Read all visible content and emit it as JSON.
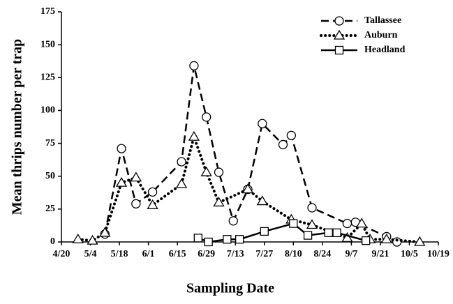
{
  "chart_data": {
    "type": "line",
    "xlabel": "Sampling Date",
    "ylabel": "Mean thrips number per trap",
    "xlim": [
      "4/20",
      "10/19"
    ],
    "xticks": [
      "4/20",
      "5/4",
      "5/18",
      "6/1",
      "6/15",
      "6/29",
      "7/13",
      "7/27",
      "8/10",
      "8/24",
      "9/7",
      "9/21",
      "10/5",
      "10/19"
    ],
    "ylim": [
      0,
      175
    ],
    "yticks": [
      0,
      25,
      50,
      75,
      100,
      125,
      150,
      175
    ],
    "legend": "upper right",
    "series": [
      {
        "name": "Tallassee",
        "color": "#000000",
        "style": "dashed",
        "marker": "circle",
        "x": [
          "5/11",
          "5/19",
          "5/26",
          "6/3",
          "6/17",
          "6/23",
          "6/29",
          "7/5",
          "7/12",
          "7/19",
          "7/26",
          "8/5",
          "8/9",
          "8/19",
          "9/5",
          "9/9",
          "9/24",
          "9/29"
        ],
        "values": [
          6,
          71,
          29,
          38,
          61,
          134,
          95,
          53,
          16,
          40,
          90,
          74,
          81,
          26,
          14,
          15,
          4,
          0
        ]
      },
      {
        "name": "Auburn",
        "color": "#000000",
        "style": "dotted",
        "marker": "triangle",
        "x": [
          "4/28",
          "5/5",
          "5/11",
          "5/19",
          "5/26",
          "6/3",
          "6/17",
          "6/23",
          "6/29",
          "7/5",
          "7/19",
          "7/26",
          "8/9",
          "8/19",
          "9/5",
          "9/12",
          "9/16",
          "9/24",
          "10/10"
        ],
        "values": [
          2,
          1,
          7,
          45,
          49,
          28,
          44,
          80,
          53,
          30,
          40,
          31,
          17,
          13,
          3,
          14,
          2,
          2,
          0
        ]
      },
      {
        "name": "Headland",
        "color": "#000000",
        "style": "solid",
        "marker": "square",
        "x": [
          "6/25",
          "6/30",
          "7/9",
          "7/15",
          "7/27",
          "8/10",
          "8/17",
          "8/27",
          "8/31",
          "9/14"
        ],
        "values": [
          3,
          0,
          2,
          2,
          8,
          14,
          5,
          7,
          7,
          1
        ]
      }
    ]
  }
}
